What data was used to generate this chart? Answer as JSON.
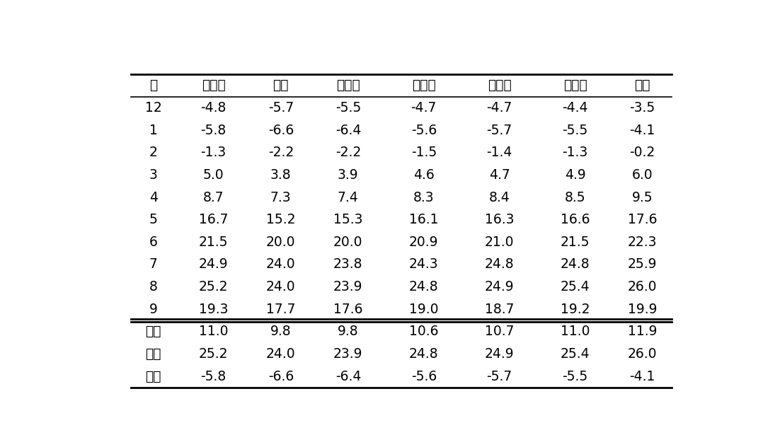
{
  "columns": [
    "월",
    "도청리",
    "상리",
    "남면리",
    "가송리",
    "풍호리",
    "원청리",
    "옥동"
  ],
  "data_rows": [
    [
      "12",
      "-4.8",
      "-5.7",
      "-5.5",
      "-4.7",
      "-4.7",
      "-4.4",
      "-3.5"
    ],
    [
      "1",
      "-5.8",
      "-6.6",
      "-6.4",
      "-5.6",
      "-5.7",
      "-5.5",
      "-4.1"
    ],
    [
      "2",
      "-1.3",
      "-2.2",
      "-2.2",
      "-1.5",
      "-1.4",
      "-1.3",
      "-0.2"
    ],
    [
      "3",
      "5.0",
      "3.8",
      "3.9",
      "4.6",
      "4.7",
      "4.9",
      "6.0"
    ],
    [
      "4",
      "8.7",
      "7.3",
      "7.4",
      "8.3",
      "8.4",
      "8.5",
      "9.5"
    ],
    [
      "5",
      "16.7",
      "15.2",
      "15.3",
      "16.1",
      "16.3",
      "16.6",
      "17.6"
    ],
    [
      "6",
      "21.5",
      "20.0",
      "20.0",
      "20.9",
      "21.0",
      "21.5",
      "22.3"
    ],
    [
      "7",
      "24.9",
      "24.0",
      "23.8",
      "24.3",
      "24.8",
      "24.8",
      "25.9"
    ],
    [
      "8",
      "25.2",
      "24.0",
      "23.9",
      "24.8",
      "24.9",
      "25.4",
      "26.0"
    ],
    [
      "9",
      "19.3",
      "17.7",
      "17.6",
      "19.0",
      "18.7",
      "19.2",
      "19.9"
    ]
  ],
  "summary_rows": [
    [
      "평균",
      "11.0",
      "9.8",
      "9.8",
      "10.6",
      "10.7",
      "11.0",
      "11.9"
    ],
    [
      "최대",
      "25.2",
      "24.0",
      "23.9",
      "24.8",
      "24.9",
      "25.4",
      "26.0"
    ],
    [
      "최저",
      "-5.8",
      "-6.6",
      "-6.4",
      "-5.6",
      "-5.7",
      "-5.5",
      "-4.1"
    ]
  ],
  "background_color": "#ffffff",
  "text_color": "#000000",
  "fontsize": 13.5,
  "line_thick": 2.0,
  "line_thin": 1.2
}
